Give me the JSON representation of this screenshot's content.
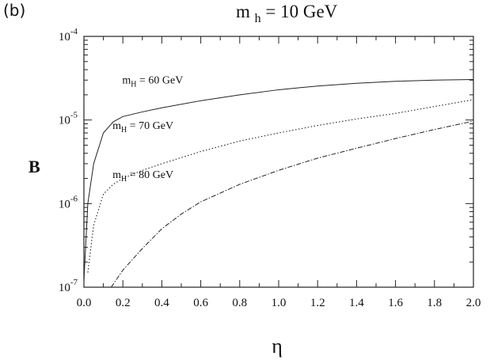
{
  "panel_label": "(b)",
  "chart_data": {
    "type": "line",
    "title_main": "m",
    "title_sub": "h",
    "title_rest": " = 10 GeV",
    "xlabel": "η",
    "ylabel": "B",
    "xlim": [
      0.0,
      2.0
    ],
    "ylim": [
      1e-07,
      0.0001
    ],
    "yscale": "log",
    "x_ticks": [
      "0.0",
      "0.2",
      "0.4",
      "0.6",
      "0.8",
      "1.0",
      "1.2",
      "1.4",
      "1.6",
      "1.8",
      "2.0"
    ],
    "y_ticks": [
      {
        "base": "10",
        "exp": "-7"
      },
      {
        "base": "10",
        "exp": "-6"
      },
      {
        "base": "10",
        "exp": "-5"
      },
      {
        "base": "10",
        "exp": "-4"
      }
    ],
    "grid": false,
    "series": [
      {
        "name": "60 GeV",
        "label_main": "m",
        "label_sub": "H",
        "label_rest": " = 60 GeV",
        "style": "solid",
        "x": [
          0.0,
          0.02,
          0.05,
          0.1,
          0.15,
          0.2,
          0.3,
          0.4,
          0.6,
          0.8,
          1.0,
          1.2,
          1.4,
          1.6,
          1.8,
          2.0
        ],
        "y": [
          1.2e-07,
          1e-06,
          3e-06,
          7e-06,
          9.5e-06,
          1.1e-05,
          1.25e-05,
          1.4e-05,
          1.7e-05,
          2e-05,
          2.3e-05,
          2.55e-05,
          2.75e-05,
          2.9e-05,
          3e-05,
          3.05e-05
        ]
      },
      {
        "name": "70 GeV",
        "label_main": "m",
        "label_sub": "H",
        "label_rest": " = 70 GeV",
        "style": "dotted",
        "x": [
          0.02,
          0.05,
          0.1,
          0.15,
          0.2,
          0.3,
          0.4,
          0.6,
          0.8,
          1.0,
          1.2,
          1.4,
          1.6,
          1.8,
          2.0
        ],
        "y": [
          1.5e-07,
          5.5e-07,
          1.3e-06,
          1.7e-06,
          2e-06,
          2.5e-06,
          3e-06,
          4.2e-06,
          5.6e-06,
          7e-06,
          8.6e-06,
          1.03e-05,
          1.2e-05,
          1.45e-05,
          1.75e-05
        ]
      },
      {
        "name": "80 GeV",
        "label_main": "m",
        "label_sub": "H",
        "label_rest": " = 80 GeV",
        "style": "dash-dot",
        "x": [
          0.14,
          0.2,
          0.3,
          0.4,
          0.5,
          0.6,
          0.8,
          1.0,
          1.2,
          1.4,
          1.6,
          1.8,
          2.0
        ],
        "y": [
          1e-07,
          1.6e-07,
          2.9e-07,
          5e-07,
          7.5e-07,
          1.05e-06,
          1.7e-06,
          2.5e-06,
          3.5e-06,
          4.6e-06,
          6e-06,
          7.7e-06,
          9.7e-06
        ]
      }
    ]
  }
}
